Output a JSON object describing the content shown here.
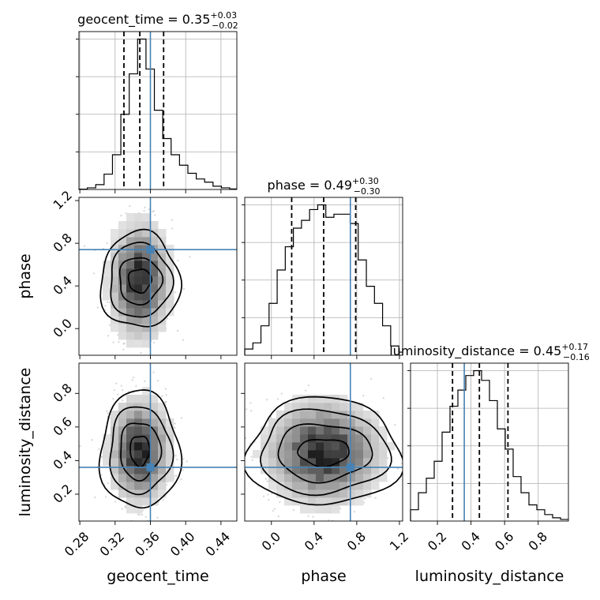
{
  "chart_data": {
    "type": "corner",
    "parameters": [
      "geocent_time",
      "phase",
      "luminosity_distance"
    ],
    "truths": {
      "geocent_time": 0.36,
      "phase": 0.74,
      "luminosity_distance": 0.36
    },
    "titles": [
      {
        "param": "geocent_time",
        "prefix": "geocent_time = ",
        "median": "0.35",
        "plus": "+0.03",
        "minus": "−0.02"
      },
      {
        "param": "phase",
        "prefix": "phase = ",
        "median": "0.49",
        "plus": "+0.30",
        "minus": "−0.30"
      },
      {
        "param": "luminosity_distance",
        "prefix": "luminosity_distance = ",
        "median": "0.45",
        "plus": "+0.17",
        "minus": "−0.16"
      }
    ],
    "axes": {
      "geocent_time": {
        "range": [
          0.279,
          0.458
        ],
        "ticks": [
          0.28,
          0.32,
          0.36,
          0.4,
          0.44
        ],
        "tick_labels": [
          "0.28",
          "0.32",
          "0.36",
          "0.40",
          "0.44"
        ]
      },
      "phase": {
        "range": [
          -0.25,
          1.23
        ],
        "ticks": [
          0.0,
          0.4,
          0.8,
          1.2
        ],
        "tick_labels": [
          "0.0",
          "0.4",
          "0.8",
          "1.2"
        ]
      },
      "luminosity_distance": {
        "range": [
          0.04,
          0.98
        ],
        "ticks": [
          0.2,
          0.4,
          0.6,
          0.8
        ],
        "tick_labels": [
          "0.2",
          "0.4",
          "0.6",
          "0.8"
        ]
      }
    },
    "marginals": {
      "geocent_time": {
        "quantiles": [
          0.33,
          0.348,
          0.375
        ],
        "bin_edges": [
          0.279,
          0.2885,
          0.298,
          0.3075,
          0.317,
          0.3265,
          0.336,
          0.3455,
          0.355,
          0.3645,
          0.374,
          0.3835,
          0.393,
          0.4025,
          0.412,
          0.4215,
          0.431,
          0.4405,
          0.45,
          0.458
        ],
        "values": [
          0.2,
          1.0,
          3.0,
          9.5,
          21.5,
          46.5,
          71.5,
          93.0,
          74.5,
          49.0,
          31.5,
          21.5,
          15.0,
          10.0,
          6.5,
          4.5,
          2.0,
          1.0,
          0.3
        ]
      },
      "phase": {
        "quantiles": [
          0.19,
          0.49,
          0.79
        ],
        "bin_edges": [
          -0.25,
          -0.174,
          -0.098,
          -0.022,
          0.054,
          0.13,
          0.206,
          0.282,
          0.358,
          0.434,
          0.51,
          0.586,
          0.662,
          0.738,
          0.814,
          0.89,
          0.966,
          1.042,
          1.118,
          1.194,
          1.23
        ],
        "values": [
          4.0,
          8.0,
          19.0,
          33.5,
          55.0,
          70.0,
          82.0,
          87.0,
          94.0,
          97.0,
          89.0,
          91.0,
          91.0,
          85.0,
          61.5,
          44.5,
          33.5,
          19.0,
          6.0,
          2.0
        ]
      },
      "luminosity_distance": {
        "quantiles": [
          0.29,
          0.45,
          0.62
        ],
        "bin_edges": [
          0.04,
          0.087,
          0.134,
          0.181,
          0.228,
          0.275,
          0.322,
          0.369,
          0.416,
          0.463,
          0.51,
          0.557,
          0.604,
          0.651,
          0.698,
          0.745,
          0.792,
          0.839,
          0.886,
          0.933,
          0.98
        ],
        "values": [
          7.0,
          17.5,
          26.5,
          37.0,
          55.0,
          71.0,
          81.0,
          90.0,
          93.0,
          87.0,
          74.5,
          57.0,
          44.5,
          27.5,
          17.5,
          10.0,
          7.0,
          4.0,
          2.0,
          1.0
        ]
      }
    },
    "joint": [
      {
        "x": "geocent_time",
        "y": "phase",
        "center": [
          0.348,
          0.45
        ],
        "sigma": [
          0.018,
          0.28
        ],
        "contours": [
          [
            0.013,
            0.11
          ],
          [
            0.024,
            0.22
          ],
          [
            0.035,
            0.35
          ],
          [
            0.045,
            0.45
          ]
        ]
      },
      {
        "x": "geocent_time",
        "y": "luminosity_distance",
        "center": [
          0.348,
          0.46
        ],
        "sigma": [
          0.018,
          0.16
        ],
        "contours": [
          [
            0.011,
            0.09
          ],
          [
            0.023,
            0.17
          ],
          [
            0.035,
            0.26
          ],
          [
            0.045,
            0.35
          ]
        ]
      },
      {
        "x": "phase",
        "y": "luminosity_distance",
        "center": [
          0.49,
          0.45
        ],
        "sigma": [
          0.28,
          0.16
        ],
        "contours": [
          [
            0.24,
            0.08
          ],
          [
            0.44,
            0.17
          ],
          [
            0.6,
            0.25
          ],
          [
            0.72,
            0.32
          ]
        ]
      }
    ]
  }
}
